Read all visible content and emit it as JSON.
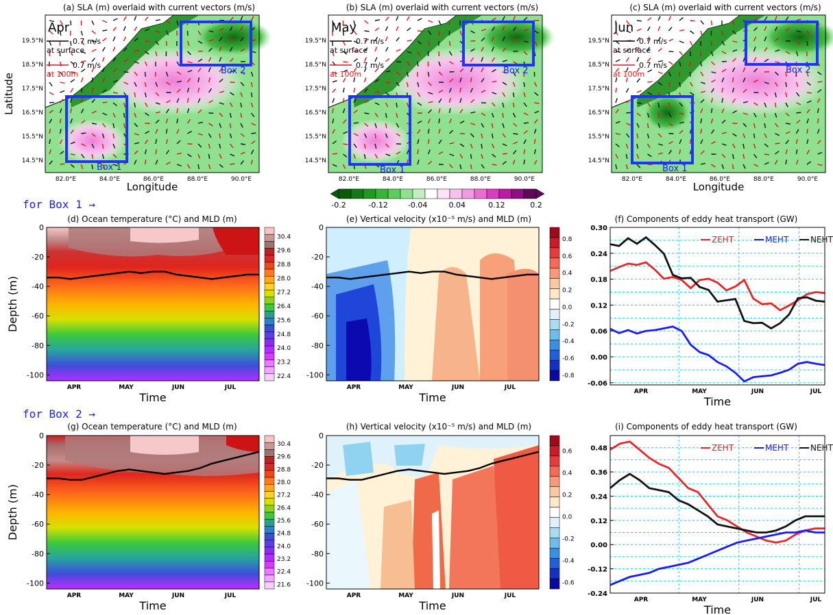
{
  "header_row_labels": {
    "box1": "for Box 1 →",
    "box2": "for Box 2 →"
  },
  "colors": {
    "ZEHT": "#e8262a",
    "MEHT": "#1919ff",
    "NEHT": "#111111",
    "box_outline": "#1e33ff",
    "land": "#ffffff"
  },
  "maps": [
    {
      "title": "(a) SLA (m) overlaid with current vectors (m/s)",
      "month": "Apr",
      "box1_label": "Box 1",
      "box2_label": "Box 2",
      "ylabel": "Latitude",
      "xlabel": "Longitude",
      "xticks": [
        "82.0°E",
        "84.0°E",
        "86.0°E",
        "88.0°E",
        "90.0°E"
      ],
      "yticks": [
        "19.5°N",
        "18.5°N",
        "17.5°N",
        "16.5°N",
        "15.5°N",
        "14.5°N"
      ],
      "ref_surface": "0.7 m/s",
      "ref_surface_caption": "at surface",
      "ref_100m": "0.7 m/s",
      "ref_100m_caption": "at 100m"
    },
    {
      "title": "(b) SLA (m) overlaid with current vectors (m/s)",
      "month": "May",
      "box1_label": "Box 1",
      "box2_label": "Box 2",
      "ylabel": "",
      "xlabel": "",
      "xticks": [
        "82.0°E",
        "84.0°E",
        "86.0°E",
        "88.0°E",
        "90.0°E"
      ],
      "yticks": [
        "19.5°N",
        "18.5°N",
        "17.5°N",
        "16.5°N",
        "15.5°N",
        "14.5°N"
      ],
      "ref_surface": "0.7 m/s",
      "ref_surface_caption": "at surface",
      "ref_100m": "0.7 m/s",
      "ref_100m_caption": "at 100m"
    },
    {
      "title": "(c) SLA (m) overlaid with current vectors (m/s)",
      "month": "Jun",
      "box1_label": "Box 1",
      "box2_label": "Box 2",
      "ylabel": "",
      "xlabel": "Longitude",
      "xticks": [
        "82.0°E",
        "84.0°E",
        "86.0°E",
        "88.0°E",
        "90.0°E"
      ],
      "yticks": [
        "19.5°N",
        "18.5°N",
        "17.5°N",
        "16.5°N",
        "15.5°N",
        "14.5°N"
      ],
      "ref_surface": "0.7 m/s",
      "ref_surface_caption": "at surface",
      "ref_100m": "0.7 m/s",
      "ref_100m_caption": "at 100m"
    }
  ],
  "sla_colorbar": {
    "labels": [
      "-0.2",
      "-0.12",
      "-0.04",
      "0.04",
      "0.12",
      "0.2"
    ],
    "colors": [
      "#0a5a0a",
      "#127a12",
      "#1f9a1f",
      "#36b636",
      "#5ccc5c",
      "#8fe08f",
      "#c2efc2",
      "#ffffff",
      "#fde3f7",
      "#f8c0ec",
      "#f29ae0",
      "#ea6ed2",
      "#d83fc0",
      "#b91aa6",
      "#8e0f82",
      "#5e085a"
    ]
  },
  "chart_data": [
    {
      "type": "heatmap",
      "panel": "d",
      "title": "(d) Ocean temperature (°C) and MLD (m)",
      "xlabel": "Time",
      "ylabel": "Depth (m)",
      "xticks": [
        "APR",
        "MAY",
        "JUN",
        "JUL"
      ],
      "yticks": [
        0,
        -20,
        -40,
        -60,
        -80,
        -100
      ],
      "ylim": [
        -104,
        0
      ],
      "colorbar": [
        "30.4",
        "29.6",
        "28.8",
        "28.0",
        "27.2",
        "26.4",
        "25.6",
        "24.8",
        "24.0",
        "23.2",
        "22.4"
      ],
      "mld_line": [
        -34,
        -34,
        -35,
        -34,
        -33,
        -32,
        -31,
        -30,
        -31,
        -30,
        -30,
        -32,
        -33,
        -34,
        -35,
        -34,
        -33,
        -32,
        -32
      ]
    },
    {
      "type": "heatmap",
      "panel": "e",
      "title": "(e) Vertical velocity (x10⁻⁵ m/s) and MLD (m)",
      "xlabel": "Time",
      "xticks": [
        "APR",
        "MAY",
        "JUN",
        "JUL"
      ],
      "yticks": [
        0,
        -20,
        -40,
        -60,
        -80,
        -100
      ],
      "ylim": [
        -104,
        0
      ],
      "colorbar": [
        "0.8",
        "0.6",
        "0.4",
        "0.2",
        "0.0",
        "-0.2",
        "-0.4",
        "-0.6",
        "-0.8"
      ],
      "mld_line": [
        -34,
        -34,
        -35,
        -34,
        -33,
        -32,
        -31,
        -30,
        -31,
        -30,
        -30,
        -32,
        -33,
        -34,
        -35,
        -34,
        -33,
        -32,
        -32
      ]
    },
    {
      "type": "line",
      "panel": "f",
      "title": "(f) Components of eddy heat transport (GW)",
      "xlabel": "Time",
      "xticks": [
        "APR",
        "MAY",
        "JUN",
        "JUL"
      ],
      "yticks": [
        "0.30",
        "0.24",
        "0.18",
        "0.12",
        "0.06",
        "0.00",
        "-0.06"
      ],
      "ylim": [
        -0.065,
        0.3
      ],
      "grid": true,
      "legend": "top-right",
      "series": [
        {
          "name": "ZEHT",
          "values": [
            0.199,
            0.208,
            0.216,
            0.213,
            0.219,
            0.202,
            0.181,
            0.185,
            0.178,
            0.159,
            0.178,
            0.181,
            0.172,
            0.154,
            0.163,
            0.178,
            0.135,
            0.122,
            0.124,
            0.108,
            0.119,
            0.131,
            0.145,
            0.15,
            0.148
          ]
        },
        {
          "name": "MEHT",
          "values": [
            0.065,
            0.055,
            0.062,
            0.054,
            0.06,
            0.062,
            0.066,
            0.07,
            0.06,
            0.028,
            0.011,
            0.004,
            -0.012,
            -0.022,
            -0.037,
            -0.057,
            -0.047,
            -0.045,
            -0.043,
            -0.037,
            -0.03,
            -0.016,
            -0.012,
            -0.016,
            -0.019
          ]
        },
        {
          "name": "NEHT",
          "values": [
            0.261,
            0.257,
            0.275,
            0.262,
            0.277,
            0.259,
            0.239,
            0.19,
            0.182,
            0.183,
            0.162,
            0.155,
            0.128,
            0.131,
            0.134,
            0.083,
            0.078,
            0.079,
            0.066,
            0.078,
            0.098,
            0.136,
            0.138,
            0.13,
            0.128
          ]
        }
      ]
    },
    {
      "type": "heatmap",
      "panel": "g",
      "title": "(g) Ocean temperature (°C) and MLD (m)",
      "xlabel": "Time",
      "ylabel": "Depth (m)",
      "xticks": [
        "APR",
        "MAY",
        "JUN",
        "JUL"
      ],
      "yticks": [
        0,
        -20,
        -40,
        -60,
        -80,
        -100
      ],
      "ylim": [
        -104,
        0
      ],
      "colorbar": [
        "30.4",
        "29.6",
        "28.8",
        "28.0",
        "27.2",
        "26.4",
        "25.6",
        "24.8",
        "24.0",
        "23.2",
        "22.4",
        "21.6"
      ],
      "mld_line": [
        -29,
        -29,
        -30,
        -30,
        -28,
        -26,
        -24,
        -23,
        -24,
        -25,
        -26,
        -25,
        -24,
        -22,
        -19,
        -17,
        -15,
        -13,
        -11
      ]
    },
    {
      "type": "heatmap",
      "panel": "h",
      "title": "(h) Vertical velocity (x10⁻⁵ m/s) and MLD (m)",
      "xlabel": "Time",
      "xticks": [
        "APR",
        "MAY",
        "JUN",
        "JUL"
      ],
      "yticks": [
        0,
        -20,
        -40,
        -60,
        -80,
        -100
      ],
      "ylim": [
        -104,
        0
      ],
      "colorbar": [
        "0.6",
        "0.4",
        "0.2",
        "0.0",
        "-0.2",
        "-0.4",
        "-0.6"
      ],
      "mld_line": [
        -29,
        -29,
        -30,
        -30,
        -28,
        -26,
        -24,
        -23,
        -24,
        -25,
        -26,
        -25,
        -24,
        -22,
        -19,
        -17,
        -15,
        -13,
        -11
      ]
    },
    {
      "type": "line",
      "panel": "i",
      "title": "(i) Components of eddy heat transport (GW)",
      "xlabel": "Time",
      "xticks": [
        "APR",
        "MAY",
        "JUN",
        "JUL"
      ],
      "yticks": [
        "0.48",
        "0.36",
        "0.24",
        "0.12",
        "0.00",
        "-0.12",
        "-0.24"
      ],
      "ylim": [
        -0.24,
        0.54
      ],
      "grid": true,
      "legend": "top-right",
      "series": [
        {
          "name": "ZEHT",
          "values": [
            0.47,
            0.5,
            0.51,
            0.47,
            0.43,
            0.4,
            0.38,
            0.33,
            0.28,
            0.26,
            0.2,
            0.14,
            0.12,
            0.09,
            0.06,
            0.04,
            0.02,
            0.01,
            0.02,
            0.05,
            0.07,
            0.08,
            0.08
          ]
        },
        {
          "name": "MEHT",
          "values": [
            -0.2,
            -0.18,
            -0.16,
            -0.15,
            -0.14,
            -0.12,
            -0.11,
            -0.1,
            -0.09,
            -0.07,
            -0.05,
            -0.03,
            -0.01,
            0.01,
            0.02,
            0.03,
            0.04,
            0.05,
            0.06,
            0.06,
            0.07,
            0.06,
            0.06
          ]
        },
        {
          "name": "NEHT",
          "values": [
            0.28,
            0.32,
            0.35,
            0.32,
            0.28,
            0.27,
            0.26,
            0.22,
            0.2,
            0.17,
            0.14,
            0.1,
            0.09,
            0.08,
            0.07,
            0.06,
            0.06,
            0.07,
            0.09,
            0.12,
            0.14,
            0.14,
            0.14
          ]
        }
      ]
    }
  ]
}
